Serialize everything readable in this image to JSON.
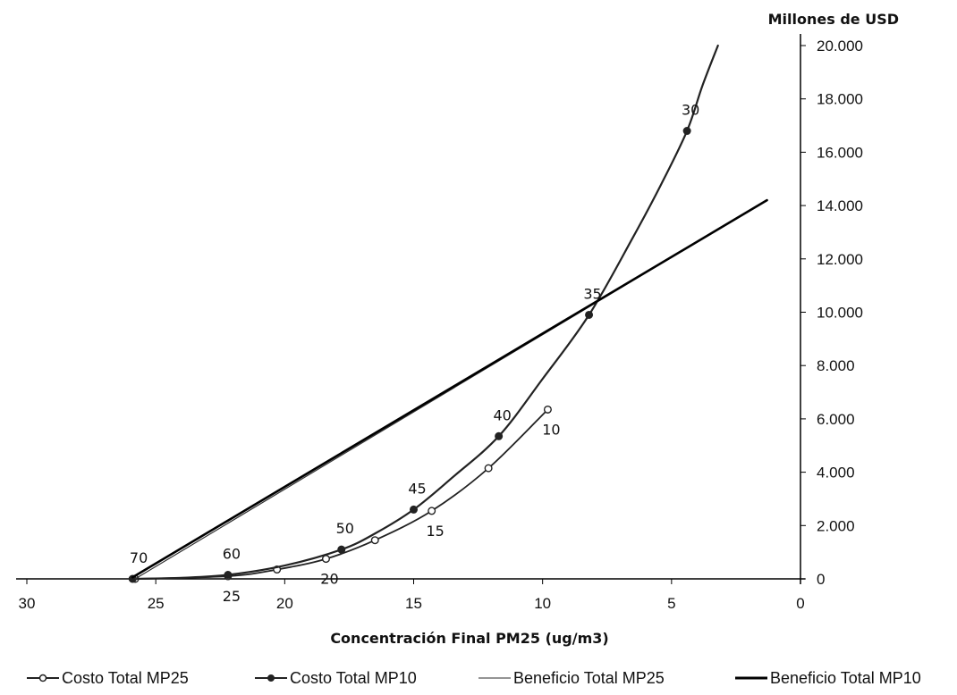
{
  "chart_data": {
    "type": "line",
    "title": "",
    "xlabel": "Concentración Final PM25 (ug/m3)",
    "ylabel": "Millones de USD",
    "xlim": [
      30,
      0
    ],
    "x_reversed": true,
    "ylim": [
      0,
      20000
    ],
    "y_axis_position": "right",
    "x_ticks": [
      30,
      25,
      20,
      15,
      10,
      5,
      0
    ],
    "x_tick_labels": [
      "30",
      "25",
      "20",
      "15",
      "10",
      "5",
      "0"
    ],
    "y_ticks": [
      0,
      2000,
      4000,
      6000,
      8000,
      10000,
      12000,
      14000,
      16000,
      18000,
      20000
    ],
    "y_tick_labels": [
      "0",
      "2.000",
      "4.000",
      "6.000",
      "8.000",
      "10.000",
      "12.000",
      "14.000",
      "16.000",
      "18.000",
      "20.000"
    ],
    "grid": false,
    "legend_position": "bottom",
    "series": [
      {
        "name": "Costo Total MP25",
        "color": "#222222",
        "marker": "open-circle",
        "points": [
          [
            25.8,
            0
          ],
          [
            22.2,
            100
          ],
          [
            20.3,
            350
          ],
          [
            18.4,
            750
          ],
          [
            16.5,
            1450
          ],
          [
            14.3,
            2550
          ],
          [
            12.1,
            4150
          ],
          [
            9.8,
            6350
          ]
        ]
      },
      {
        "name": "Costo Total MP10",
        "color": "#222222",
        "marker": "filled-circle",
        "points": [
          [
            25.9,
            0
          ],
          [
            22.2,
            150
          ],
          [
            17.8,
            1100
          ],
          [
            15.0,
            2600
          ],
          [
            11.7,
            5350
          ],
          [
            8.2,
            9900
          ],
          [
            4.4,
            16800
          ]
        ],
        "curve_points": [
          [
            25.9,
            0
          ],
          [
            24.0,
            40
          ],
          [
            22.2,
            150
          ],
          [
            20.0,
            500
          ],
          [
            17.8,
            1100
          ],
          [
            16.5,
            1700
          ],
          [
            15.0,
            2600
          ],
          [
            13.5,
            3800
          ],
          [
            11.7,
            5350
          ],
          [
            10.0,
            7500
          ],
          [
            8.2,
            9900
          ],
          [
            6.5,
            12800
          ],
          [
            5.4,
            14800
          ],
          [
            4.4,
            16800
          ],
          [
            3.8,
            18500
          ],
          [
            3.2,
            20000
          ]
        ]
      },
      {
        "name": "Beneficio Total MP25",
        "color": "#333333",
        "marker": "none",
        "points": [
          [
            25.8,
            0
          ],
          [
            1.3,
            14200
          ]
        ]
      },
      {
        "name": "Beneficio Total MP10",
        "color": "#000000",
        "marker": "none",
        "points": [
          [
            25.9,
            60
          ],
          [
            1.3,
            14200
          ]
        ]
      }
    ],
    "annotations": [
      {
        "text": "70",
        "x": 25.8,
        "y": 0,
        "anchor": "above"
      },
      {
        "text": "60",
        "x": 22.2,
        "y": 150,
        "anchor": "above"
      },
      {
        "text": "50",
        "x": 17.8,
        "y": 1100,
        "anchor": "above"
      },
      {
        "text": "45",
        "x": 15.0,
        "y": 2600,
        "anchor": "above"
      },
      {
        "text": "40",
        "x": 11.7,
        "y": 5350,
        "anchor": "above"
      },
      {
        "text": "35",
        "x": 8.2,
        "y": 9900,
        "anchor": "above"
      },
      {
        "text": "30",
        "x": 4.4,
        "y": 16800,
        "anchor": "above"
      },
      {
        "text": "10",
        "x": 9.8,
        "y": 6350,
        "anchor": "below"
      },
      {
        "text": "15",
        "x": 14.3,
        "y": 2550,
        "anchor": "below"
      },
      {
        "text": "20",
        "x": 18.4,
        "y": 750,
        "anchor": "below"
      },
      {
        "text": "25",
        "x": 22.2,
        "y": 100,
        "anchor": "below"
      }
    ]
  }
}
